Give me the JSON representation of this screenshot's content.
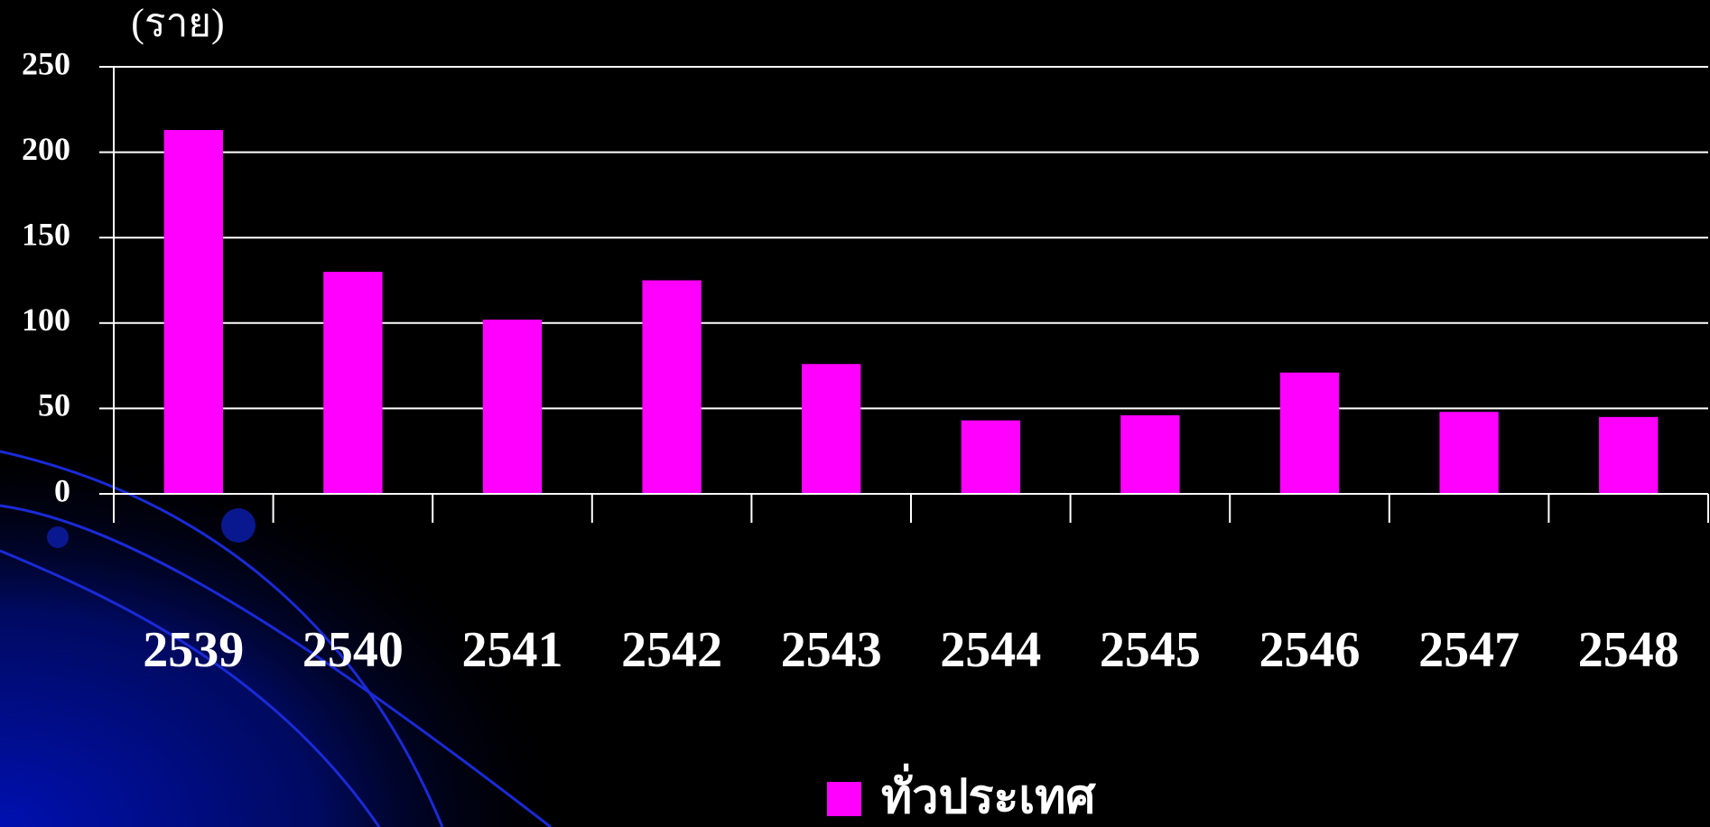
{
  "chart_data": {
    "type": "bar",
    "y_label": "(ราย)",
    "categories": [
      "2539",
      "2540",
      "2541",
      "2542",
      "2543",
      "2544",
      "2545",
      "2546",
      "2547",
      "2548"
    ],
    "series": [
      {
        "name": "ทั่วประเทศ",
        "color": "#ff00ff",
        "values": [
          213,
          130,
          102,
          125,
          76,
          43,
          46,
          71,
          48,
          45
        ]
      }
    ],
    "ylim": [
      0,
      250
    ],
    "yticks": [
      0,
      50,
      100,
      150,
      200,
      250
    ],
    "grid": true,
    "legend": "bottom"
  }
}
